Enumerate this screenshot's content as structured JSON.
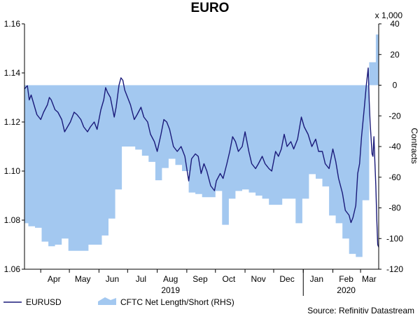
{
  "chart_data": {
    "type": "line",
    "title": "EURO",
    "left_axis": {
      "min": 1.06,
      "max": 1.16,
      "step": 0.02,
      "ticks": [
        "1.06",
        "1.08",
        "1.10",
        "1.12",
        "1.14",
        "1.16"
      ]
    },
    "right_axis": {
      "min": -120,
      "max": 40,
      "step": 20,
      "ticks": [
        "-120",
        "-100",
        "-80",
        "-60",
        "-40",
        "-20",
        "0",
        "20",
        "40"
      ],
      "unit_label": "x 1,000",
      "label": "Contracts"
    },
    "x_axis": {
      "start": "2019-03-15",
      "end": "2020-03-20",
      "months": [
        {
          "label": "Apr",
          "date": "2019-04-15"
        },
        {
          "label": "May",
          "date": "2019-05-15"
        },
        {
          "label": "Jun",
          "date": "2019-06-15"
        },
        {
          "label": "Jul",
          "date": "2019-07-15"
        },
        {
          "label": "Aug",
          "date": "2019-08-15"
        },
        {
          "label": "Sep",
          "date": "2019-09-15"
        },
        {
          "label": "Oct",
          "date": "2019-10-15"
        },
        {
          "label": "Nov",
          "date": "2019-11-15"
        },
        {
          "label": "Dec",
          "date": "2019-12-15"
        },
        {
          "label": "Jan",
          "date": "2020-01-15"
        },
        {
          "label": "Feb",
          "date": "2020-02-15"
        },
        {
          "label": "Mar",
          "date": "2020-03-10"
        }
      ],
      "years": [
        {
          "label": "2019",
          "date": "2019-08-15"
        },
        {
          "label": "2020",
          "date": "2020-02-15"
        }
      ],
      "year_boundary": "2020-01-01"
    },
    "series": [
      {
        "name": "EURUSD",
        "axis": "left",
        "style": "line",
        "color": "#1a1a7a",
        "points": [
          [
            "2019-03-15",
            1.1335
          ],
          [
            "2019-03-18",
            1.1348
          ],
          [
            "2019-03-20",
            1.129
          ],
          [
            "2019-03-22",
            1.131
          ],
          [
            "2019-03-25",
            1.127
          ],
          [
            "2019-03-28",
            1.123
          ],
          [
            "2019-04-01",
            1.121
          ],
          [
            "2019-04-04",
            1.124
          ],
          [
            "2019-04-08",
            1.127
          ],
          [
            "2019-04-10",
            1.13
          ],
          [
            "2019-04-12",
            1.129
          ],
          [
            "2019-04-16",
            1.125
          ],
          [
            "2019-04-19",
            1.124
          ],
          [
            "2019-04-23",
            1.121
          ],
          [
            "2019-04-26",
            1.116
          ],
          [
            "2019-04-29",
            1.118
          ],
          [
            "2019-05-02",
            1.12
          ],
          [
            "2019-05-06",
            1.124
          ],
          [
            "2019-05-09",
            1.123
          ],
          [
            "2019-05-13",
            1.121
          ],
          [
            "2019-05-16",
            1.118
          ],
          [
            "2019-05-20",
            1.116
          ],
          [
            "2019-05-23",
            1.118
          ],
          [
            "2019-05-27",
            1.12
          ],
          [
            "2019-05-30",
            1.117
          ],
          [
            "2019-06-03",
            1.125
          ],
          [
            "2019-06-06",
            1.129
          ],
          [
            "2019-06-08",
            1.134
          ],
          [
            "2019-06-10",
            1.132
          ],
          [
            "2019-06-13",
            1.13
          ],
          [
            "2019-06-17",
            1.122
          ],
          [
            "2019-06-19",
            1.126
          ],
          [
            "2019-06-22",
            1.135
          ],
          [
            "2019-06-24",
            1.138
          ],
          [
            "2019-06-26",
            1.137
          ],
          [
            "2019-06-28",
            1.133
          ],
          [
            "2019-07-01",
            1.13
          ],
          [
            "2019-07-04",
            1.127
          ],
          [
            "2019-07-08",
            1.121
          ],
          [
            "2019-07-11",
            1.123
          ],
          [
            "2019-07-15",
            1.126
          ],
          [
            "2019-07-18",
            1.122
          ],
          [
            "2019-07-22",
            1.12
          ],
          [
            "2019-07-25",
            1.115
          ],
          [
            "2019-07-29",
            1.112
          ],
          [
            "2019-08-01",
            1.108
          ],
          [
            "2019-08-05",
            1.115
          ],
          [
            "2019-08-08",
            1.121
          ],
          [
            "2019-08-11",
            1.12
          ],
          [
            "2019-08-14",
            1.117
          ],
          [
            "2019-08-18",
            1.11
          ],
          [
            "2019-08-22",
            1.108
          ],
          [
            "2019-08-26",
            1.11
          ],
          [
            "2019-08-30",
            1.106
          ],
          [
            "2019-09-03",
            1.096
          ],
          [
            "2019-09-06",
            1.105
          ],
          [
            "2019-09-10",
            1.107
          ],
          [
            "2019-09-13",
            1.106
          ],
          [
            "2019-09-16",
            1.099
          ],
          [
            "2019-09-19",
            1.103
          ],
          [
            "2019-09-22",
            1.1
          ],
          [
            "2019-09-26",
            1.094
          ],
          [
            "2019-09-30",
            1.092
          ],
          [
            "2019-10-02",
            1.096
          ],
          [
            "2019-10-06",
            1.099
          ],
          [
            "2019-10-09",
            1.097
          ],
          [
            "2019-10-13",
            1.103
          ],
          [
            "2019-10-16",
            1.108
          ],
          [
            "2019-10-19",
            1.114
          ],
          [
            "2019-10-22",
            1.112
          ],
          [
            "2019-10-25",
            1.108
          ],
          [
            "2019-10-29",
            1.11
          ],
          [
            "2019-11-01",
            1.116
          ],
          [
            "2019-11-05",
            1.108
          ],
          [
            "2019-11-08",
            1.103
          ],
          [
            "2019-11-12",
            1.101
          ],
          [
            "2019-11-15",
            1.103
          ],
          [
            "2019-11-19",
            1.106
          ],
          [
            "2019-11-22",
            1.103
          ],
          [
            "2019-11-26",
            1.101
          ],
          [
            "2019-11-29",
            1.1
          ],
          [
            "2019-12-03",
            1.108
          ],
          [
            "2019-12-06",
            1.106
          ],
          [
            "2019-12-09",
            1.109
          ],
          [
            "2019-12-12",
            1.115
          ],
          [
            "2019-12-15",
            1.11
          ],
          [
            "2019-12-19",
            1.112
          ],
          [
            "2019-12-22",
            1.109
          ],
          [
            "2019-12-26",
            1.113
          ],
          [
            "2019-12-30",
            1.122
          ],
          [
            "2020-01-02",
            1.118
          ],
          [
            "2020-01-06",
            1.115
          ],
          [
            "2020-01-10",
            1.11
          ],
          [
            "2020-01-14",
            1.113
          ],
          [
            "2020-01-17",
            1.108
          ],
          [
            "2020-01-21",
            1.108
          ],
          [
            "2020-01-24",
            1.103
          ],
          [
            "2020-01-28",
            1.101
          ],
          [
            "2020-02-01",
            1.109
          ],
          [
            "2020-02-04",
            1.104
          ],
          [
            "2020-02-07",
            1.097
          ],
          [
            "2020-02-11",
            1.091
          ],
          [
            "2020-02-14",
            1.084
          ],
          [
            "2020-02-18",
            1.082
          ],
          [
            "2020-02-20",
            1.079
          ],
          [
            "2020-02-22",
            1.081
          ],
          [
            "2020-02-25",
            1.086
          ],
          [
            "2020-02-27",
            1.099
          ],
          [
            "2020-02-29",
            1.103
          ],
          [
            "2020-03-02",
            1.114
          ],
          [
            "2020-03-05",
            1.126
          ],
          [
            "2020-03-07",
            1.135
          ],
          [
            "2020-03-09",
            1.142
          ],
          [
            "2020-03-10",
            1.129
          ],
          [
            "2020-03-11",
            1.12
          ],
          [
            "2020-03-13",
            1.107
          ],
          [
            "2020-03-14",
            1.106
          ],
          [
            "2020-03-15",
            1.114
          ],
          [
            "2020-03-16",
            1.104
          ],
          [
            "2020-03-17",
            1.094
          ],
          [
            "2020-03-18",
            1.08
          ],
          [
            "2020-03-19",
            1.07
          ],
          [
            "2020-03-20",
            1.069
          ]
        ]
      },
      {
        "name": "CFTC Net Length/Short (RHS)",
        "axis": "right",
        "style": "area",
        "color": "#a3c8f0",
        "points": [
          [
            "2019-03-15",
            -90
          ],
          [
            "2019-03-19",
            -92
          ],
          [
            "2019-03-26",
            -93
          ],
          [
            "2019-04-02",
            -102
          ],
          [
            "2019-04-09",
            -105
          ],
          [
            "2019-04-16",
            -104
          ],
          [
            "2019-04-23",
            -100
          ],
          [
            "2019-04-30",
            -108
          ],
          [
            "2019-05-07",
            -108
          ],
          [
            "2019-05-14",
            -108
          ],
          [
            "2019-05-21",
            -104
          ],
          [
            "2019-05-28",
            -104
          ],
          [
            "2019-06-04",
            -98
          ],
          [
            "2019-06-11",
            -87
          ],
          [
            "2019-06-18",
            -68
          ],
          [
            "2019-06-25",
            -40
          ],
          [
            "2019-07-02",
            -40
          ],
          [
            "2019-07-09",
            -42
          ],
          [
            "2019-07-16",
            -46
          ],
          [
            "2019-07-23",
            -50
          ],
          [
            "2019-07-30",
            -62
          ],
          [
            "2019-08-06",
            -54
          ],
          [
            "2019-08-13",
            -48
          ],
          [
            "2019-08-20",
            -52
          ],
          [
            "2019-08-27",
            -56
          ],
          [
            "2019-09-03",
            -70
          ],
          [
            "2019-09-10",
            -71
          ],
          [
            "2019-09-17",
            -73
          ],
          [
            "2019-09-24",
            -73
          ],
          [
            "2019-10-01",
            -69
          ],
          [
            "2019-10-08",
            -91
          ],
          [
            "2019-10-15",
            -74
          ],
          [
            "2019-10-22",
            -69
          ],
          [
            "2019-10-29",
            -68
          ],
          [
            "2019-11-05",
            -70
          ],
          [
            "2019-11-12",
            -72
          ],
          [
            "2019-11-19",
            -74
          ],
          [
            "2019-11-26",
            -78
          ],
          [
            "2019-12-03",
            -78
          ],
          [
            "2019-12-10",
            -74
          ],
          [
            "2019-12-17",
            -74
          ],
          [
            "2019-12-24",
            -90
          ],
          [
            "2019-12-31",
            -74
          ],
          [
            "2020-01-07",
            -58
          ],
          [
            "2020-01-14",
            -61
          ],
          [
            "2020-01-21",
            -66
          ],
          [
            "2020-01-28",
            -85
          ],
          [
            "2020-02-04",
            -90
          ],
          [
            "2020-02-11",
            -100
          ],
          [
            "2020-02-18",
            -110
          ],
          [
            "2020-02-25",
            -112
          ],
          [
            "2020-03-03",
            -75
          ],
          [
            "2020-03-10",
            15
          ],
          [
            "2020-03-17",
            33
          ],
          [
            "2020-03-20",
            33
          ]
        ]
      }
    ],
    "legend": [
      {
        "label": "EURUSD",
        "marker": "line"
      },
      {
        "label": "CFTC Net Length/Short (RHS)",
        "marker": "area"
      }
    ],
    "source": "Source: Refinitiv Datastream"
  }
}
